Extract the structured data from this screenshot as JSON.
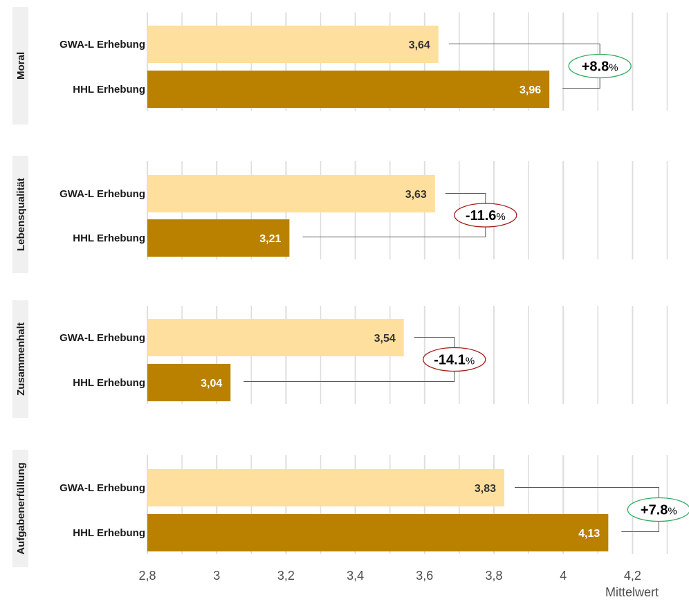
{
  "chart_data": {
    "type": "bar",
    "orientation": "horizontal",
    "xlabel": "Mittelwert",
    "xlim": [
      2.8,
      4.35
    ],
    "xticks": [
      2.8,
      3.0,
      3.2,
      3.4,
      3.6,
      3.8,
      4.0,
      4.2
    ],
    "xtick_labels": [
      "2,8",
      "3",
      "3,2",
      "3,4",
      "3,6",
      "3,8",
      "4",
      "4,2"
    ],
    "series": [
      {
        "name": "GWA-L Erhebung",
        "color": "#FFDF9E",
        "label_color": "#333333"
      },
      {
        "name": "HHL Erhebung",
        "color": "#BA8100",
        "label_color": "#ffffff"
      }
    ],
    "panels": [
      {
        "facet": "Moral",
        "values": [
          3.64,
          3.96
        ],
        "value_labels": [
          "3,64",
          "3,96"
        ],
        "change_number": "+8.8",
        "change_unit": "%",
        "direction": "positive"
      },
      {
        "facet": "Lebensqualität",
        "values": [
          3.63,
          3.21
        ],
        "value_labels": [
          "3,63",
          "3,21"
        ],
        "change_number": "-11.6",
        "change_unit": "%",
        "direction": "negative"
      },
      {
        "facet": "Zusammenhalt",
        "values": [
          3.54,
          3.04
        ],
        "value_labels": [
          "3,54",
          "3,04"
        ],
        "change_number": "-14.1",
        "change_unit": "%",
        "direction": "negative"
      },
      {
        "facet": "Aufgabenerfüllung",
        "values": [
          3.83,
          4.13
        ],
        "value_labels": [
          "3,83",
          "4,13"
        ],
        "change_number": "+7.8",
        "change_unit": "%",
        "direction": "positive"
      }
    ],
    "colors": {
      "positive": "#2EAB5F",
      "negative": "#A31C1C",
      "grid": "#DEDEDE",
      "strip": "#F0F0F0"
    }
  }
}
